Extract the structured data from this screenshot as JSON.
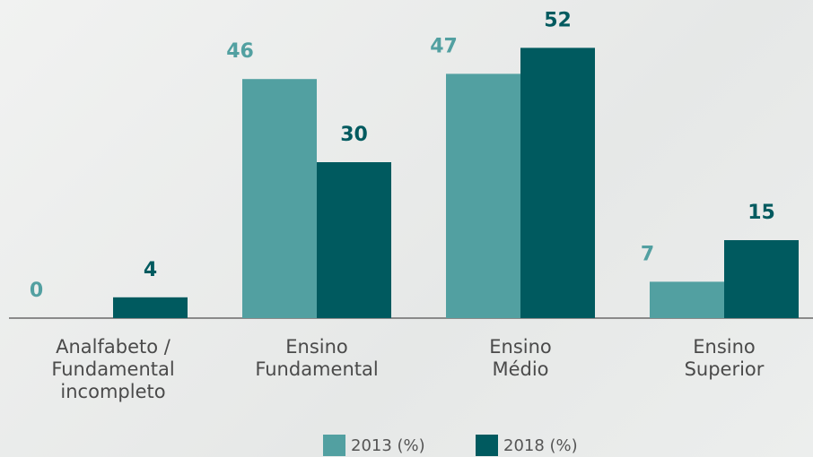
{
  "chart_data": {
    "type": "bar",
    "categories": [
      "Analfabeto /\nFundamental\nincompleto",
      "Ensino\nFundamental",
      "Ensino\nMédio",
      "Ensino\nSuperior"
    ],
    "series": [
      {
        "name": "2013 (%)",
        "color": "#52a0a1",
        "values": [
          0,
          46,
          47,
          7
        ]
      },
      {
        "name": "2018 (%)",
        "color": "#005a5f",
        "values": [
          4,
          30,
          52,
          15
        ]
      }
    ]
  }
}
